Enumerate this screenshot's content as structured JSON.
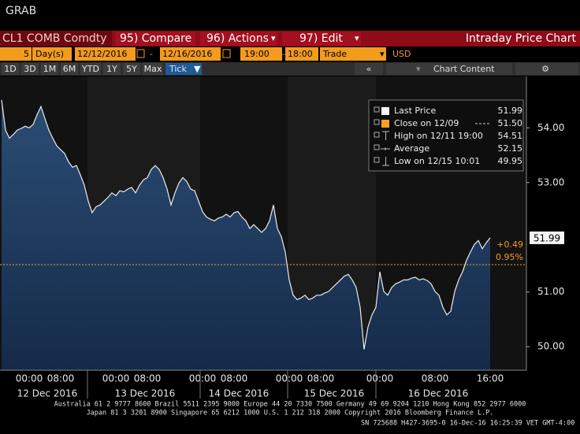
{
  "header": {
    "title": "GRAB",
    "security": "CL1 COMB Comdty",
    "buttons": [
      "95) Compare",
      "96) Actions",
      "97) Edit"
    ],
    "panel_title": "Intraday Price Chart"
  },
  "toolbar": {
    "period": "5",
    "unit": "Day(s)",
    "start": "12/12/2016",
    "end": "12/16/2016",
    "from": "19:00",
    "to": "18:00",
    "field": "Trade",
    "currency": "USD"
  },
  "ranges": [
    "1D",
    "3D",
    "1M",
    "6M",
    "YTD",
    "1Y",
    "5Y",
    "Max",
    "Tick"
  ],
  "chart_content": "Chart Content",
  "chart_data": {
    "type": "line",
    "categories": [
      null,
      null,
      null,
      null,
      null,
      null,
      null,
      "00:00",
      null,
      null,
      null,
      null,
      null,
      null,
      null,
      "08:00",
      null,
      null,
      null,
      null,
      null,
      null,
      null,
      null,
      null,
      null,
      null,
      null,
      null,
      "00:00",
      null,
      null,
      null,
      null,
      null,
      null,
      null,
      "08:00",
      null,
      null,
      null,
      null,
      null,
      null,
      null,
      null,
      null,
      null,
      null,
      null,
      null,
      "00:00",
      null,
      null,
      null,
      null,
      null,
      null,
      null,
      "08:00",
      null,
      null,
      null,
      null,
      null,
      null,
      null,
      null,
      null,
      null,
      null,
      null,
      null,
      "00:00",
      null,
      null,
      null,
      null,
      null,
      null,
      null,
      "08:00",
      null,
      null,
      null,
      null,
      null,
      null,
      null,
      null,
      null,
      null,
      null,
      null,
      null,
      null,
      "00:00",
      null,
      null,
      null,
      null,
      null,
      null,
      null,
      null,
      null,
      null,
      null,
      null,
      null,
      "08:00",
      null,
      null,
      null,
      null,
      null,
      null,
      null,
      null,
      null,
      null,
      null,
      null,
      null,
      "16:00"
    ],
    "days": [
      "12 Dec 2016",
      "13 Dec 2016",
      "14 Dec 2016",
      "15 Dec 2016",
      "16 Dec 2016"
    ],
    "series": [
      {
        "name": "Last Price",
        "color": "#ececec",
        "values": [
          54.51,
          53.96,
          53.81,
          53.88,
          53.96,
          53.99,
          54.03,
          54.0,
          54.06,
          54.24,
          54.39,
          54.17,
          53.96,
          53.81,
          53.67,
          53.6,
          53.53,
          53.38,
          53.28,
          53.31,
          53.14,
          52.95,
          52.66,
          52.45,
          52.56,
          52.59,
          52.66,
          52.73,
          52.81,
          52.76,
          52.85,
          52.83,
          52.88,
          52.91,
          52.81,
          52.95,
          53.05,
          53.09,
          53.24,
          53.31,
          53.24,
          53.09,
          52.88,
          52.59,
          52.81,
          52.99,
          53.09,
          53.02,
          52.88,
          52.85,
          52.66,
          52.47,
          52.37,
          52.33,
          52.3,
          52.35,
          52.37,
          52.42,
          52.37,
          52.45,
          52.47,
          52.37,
          52.3,
          52.16,
          52.23,
          52.16,
          52.09,
          52.16,
          52.3,
          52.59,
          52.16,
          52.01,
          51.73,
          51.22,
          50.94,
          50.86,
          50.89,
          50.94,
          50.86,
          50.89,
          50.94,
          50.94,
          50.98,
          51.01,
          51.08,
          51.15,
          51.22,
          51.29,
          51.32,
          51.22,
          51.08,
          50.72,
          49.95,
          50.36,
          50.58,
          50.72,
          51.37,
          51.01,
          50.94,
          51.08,
          51.15,
          51.18,
          51.22,
          51.22,
          51.25,
          51.27,
          51.22,
          51.24,
          51.21,
          51.15,
          51.01,
          50.94,
          50.72,
          50.58,
          50.65,
          51.01,
          51.22,
          51.37,
          51.58,
          51.73,
          51.87,
          51.94,
          51.79,
          51.9,
          51.99
        ]
      }
    ],
    "ylim": [
      49.57,
      54.94
    ],
    "yticks": [
      {
        "value": 50,
        "label": "50.00"
      },
      {
        "value": 51,
        "label": "51.00"
      },
      {
        "value": 53,
        "label": "53.00"
      },
      {
        "value": 54,
        "label": "54.00"
      }
    ],
    "close_line": {
      "value": 51.5,
      "label": "51.50",
      "color": "#f5a01e"
    },
    "annotations": {
      "last": 51.99,
      "change": "+0.49",
      "change_pct": "0.95%"
    },
    "legend": [
      {
        "label": "Close on 12/09"
      },
      {
        "label": "High on 12/11 19:00",
        "value": "54.51"
      },
      {
        "label": "Average",
        "value": "52.15"
      },
      {
        "label": "Low on 12/15 10:01",
        "value": "49.95"
      }
    ]
  },
  "footer": [
    "Australia 61 2 9777 8600 Brazil 5511 2395 9000 Europe 44 20 7330 7500 Germany 49 69 9204 1210 Hong Kong 852 2977 6000",
    "Japan 81 3 3201 8900      Singapore 65 6212 1000      U.S. 1 212 318 2000           Copyright 2016 Bloomberg Finance L.P.",
    "SN 725688 H427-3695-0 16-Dec-16 16:25:39 VET  GMT-4:00"
  ]
}
